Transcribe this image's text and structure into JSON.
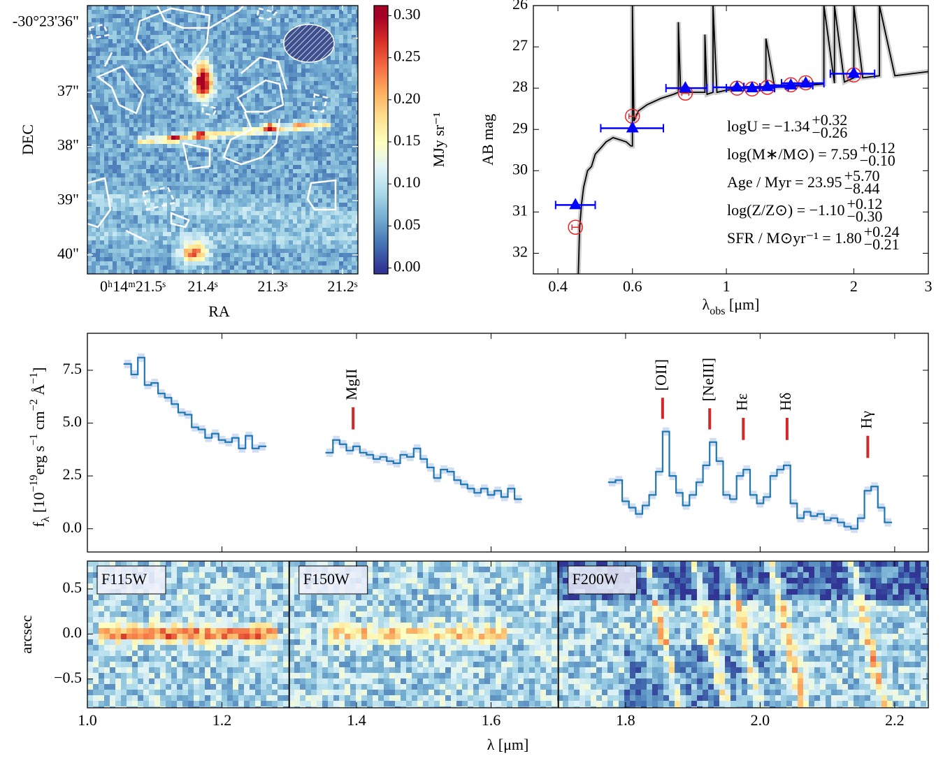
{
  "chart_data": [
    {
      "type": "image",
      "xlabel": "RA",
      "ylabel": "DEC",
      "xlim": [
        21.565,
        21.178
      ],
      "xticks": [
        {
          "value": 21.5,
          "label": "0ʰ14ᵐ21.5ˢ"
        },
        {
          "value": 21.4,
          "label": "21.4ˢ"
        },
        {
          "value": 21.3,
          "label": "21.3ˢ"
        },
        {
          "value": 21.2,
          "label": "21.2ˢ"
        }
      ],
      "ylim": [
        40.35,
        35.4
      ],
      "yticks": [
        {
          "value": 36,
          "label": "-30°23'36\""
        },
        {
          "value": 37,
          "label": "37\""
        },
        {
          "value": 38,
          "label": "38\""
        },
        {
          "value": 39,
          "label": "39\""
        },
        {
          "value": 40,
          "label": "40\""
        }
      ],
      "colorbar": {
        "label": "MJy sr⁻¹",
        "lim": [
          -0.007,
          0.312
        ],
        "ticks": [
          {
            "value": 0,
            "label": "0.00"
          },
          0.05,
          {
            "value": 0.1,
            "label": "0.10"
          },
          0.15,
          {
            "value": 0.2,
            "label": "0.20"
          },
          0.25,
          {
            "value": 0.3,
            "label": "0.30"
          }
        ]
      }
    },
    {
      "type": "sed",
      "xscale": "log",
      "xlabel": [
        {
          "text": "λ"
        },
        {
          "text": "obs",
          "pos": "sub"
        },
        {
          "text": " [μm]"
        }
      ],
      "ylabel": "AB mag",
      "xlim": [
        0.35,
        3
      ],
      "xticks": [
        0.4,
        0.6,
        1,
        2,
        3
      ],
      "ylim": [
        32.5,
        26
      ],
      "yticks": [
        26,
        27,
        28,
        29,
        30,
        31,
        32
      ],
      "model": {
        "color": "#000000",
        "x": [
          0.447,
          0.45,
          0.455,
          0.46,
          0.47,
          0.48,
          0.49,
          0.5,
          0.51,
          0.52,
          0.54,
          0.56,
          0.58,
          0.595,
          0.6,
          0.6,
          0.605,
          0.62,
          0.65,
          0.7,
          0.75,
          0.77,
          0.77,
          0.78,
          0.85,
          0.89,
          0.89,
          0.9,
          0.93,
          0.93,
          0.95,
          1.0,
          1.1,
          1.24,
          1.24,
          1.3,
          1.5,
          1.7,
          1.7,
          1.8,
          1.8,
          1.9,
          2.0,
          2.0,
          2.1,
          2.3,
          2.3,
          2.5,
          3.0
        ],
        "values": [
          32.5,
          31.4,
          30.8,
          30.4,
          30.0,
          29.9,
          29.6,
          29.5,
          29.4,
          29.3,
          29.2,
          29.25,
          29.3,
          29.4,
          29.4,
          26.0,
          28.8,
          28.55,
          28.4,
          28.25,
          28.15,
          28.1,
          26.4,
          28.1,
          28.1,
          28.1,
          26.7,
          28.15,
          28.1,
          26.0,
          28.1,
          28.05,
          28.0,
          28.0,
          26.8,
          27.98,
          27.95,
          27.9,
          26.0,
          27.88,
          26.0,
          27.85,
          27.75,
          26.0,
          27.75,
          27.7,
          26.0,
          27.7,
          27.6
        ]
      },
      "observed": {
        "color": "#0000ff",
        "x": [
          0.44,
          0.6,
          0.8,
          1.06,
          1.15,
          1.25,
          1.42,
          1.54,
          2.0
        ],
        "values": [
          30.83,
          28.97,
          28.0,
          27.98,
          28.0,
          27.97,
          27.93,
          27.88,
          27.65
        ],
        "xlo": [
          0.395,
          0.505,
          0.72,
          0.93,
          1.0,
          1.1,
          1.25,
          1.35,
          1.76
        ],
        "xhi": [
          0.49,
          0.71,
          0.9,
          1.2,
          1.3,
          1.4,
          1.6,
          1.7,
          2.24
        ]
      },
      "model_photometry": {
        "color": "#e8262a",
        "x": [
          0.44,
          0.6,
          0.8,
          1.06,
          1.15,
          1.25,
          1.42,
          1.54,
          2.0
        ],
        "values": [
          31.37,
          28.68,
          28.12,
          28.0,
          28.02,
          27.98,
          27.92,
          27.87,
          27.68
        ]
      },
      "annotations": [
        {
          "text": "logU = −1.34",
          "sup": "+0.32",
          "sub": "−0.26"
        },
        {
          "text": "log(M∗/M⊙) = 7.59",
          "sup": "+0.12",
          "sub": "−0.10"
        },
        {
          "text": "Age / Myr = 23.95",
          "sup": "+5.70",
          "sub": "−8.44"
        },
        {
          "text": "log(Z/Z⊙) = −1.10",
          "sup": "+0.12",
          "sub": "−0.30"
        },
        {
          "text": "SFR / M⊙yr⁻¹ = 1.80",
          "sup": "+0.24",
          "sub": "−0.21"
        }
      ]
    },
    {
      "type": "step",
      "color": "#1f77b4",
      "ylabel": [
        {
          "text": "f"
        },
        {
          "text": "λ",
          "pos": "sub"
        },
        {
          "text": " [10"
        },
        {
          "text": "−19",
          "pos": "sup"
        },
        {
          "text": "erg s"
        },
        {
          "text": "−1",
          "pos": "sup"
        },
        {
          "text": " cm"
        },
        {
          "text": "−2",
          "pos": "sup"
        },
        {
          "text": " Å"
        },
        {
          "text": "−1",
          "pos": "sup"
        },
        {
          "text": "]"
        }
      ],
      "xlim": [
        1.0,
        2.25
      ],
      "ylim": [
        -1.1,
        9.25
      ],
      "yticks": [
        {
          "value": 0,
          "label": "0.0"
        },
        2.5,
        {
          "value": 5,
          "label": "5.0"
        },
        7.5
      ],
      "x": [
        1.06,
        1.07,
        1.08,
        1.09,
        1.1,
        1.11,
        1.12,
        1.13,
        1.14,
        1.15,
        1.16,
        1.17,
        1.18,
        1.19,
        1.2,
        1.21,
        1.22,
        1.23,
        1.24,
        1.25,
        1.26,
        1.31,
        1.36,
        1.37,
        1.38,
        1.39,
        1.4,
        1.41,
        1.42,
        1.43,
        1.44,
        1.45,
        1.46,
        1.47,
        1.48,
        1.49,
        1.5,
        1.51,
        1.52,
        1.53,
        1.54,
        1.55,
        1.56,
        1.57,
        1.58,
        1.59,
        1.6,
        1.61,
        1.62,
        1.63,
        1.64,
        1.71,
        1.78,
        1.79,
        1.8,
        1.81,
        1.82,
        1.83,
        1.84,
        1.85,
        1.86,
        1.87,
        1.88,
        1.89,
        1.9,
        1.91,
        1.92,
        1.93,
        1.94,
        1.95,
        1.96,
        1.97,
        1.98,
        1.99,
        2.0,
        2.01,
        2.02,
        2.03,
        2.04,
        2.05,
        2.06,
        2.07,
        2.08,
        2.09,
        2.1,
        2.11,
        2.12,
        2.13,
        2.14,
        2.15,
        2.16,
        2.17,
        2.18,
        2.19
      ],
      "values": [
        7.8,
        7.3,
        8.1,
        6.8,
        6.9,
        6.4,
        6.2,
        5.9,
        5.5,
        5.4,
        4.8,
        4.7,
        4.3,
        4.5,
        4.2,
        4.1,
        4.3,
        3.8,
        4.4,
        3.8,
        3.9,
        null,
        3.6,
        4.2,
        4.0,
        3.7,
        3.9,
        3.6,
        3.5,
        3.3,
        3.4,
        3.2,
        3.1,
        3.5,
        3.4,
        3.8,
        3.3,
        2.9,
        2.4,
        2.8,
        2.7,
        2.3,
        2.1,
        1.9,
        1.7,
        1.9,
        1.6,
        1.8,
        1.5,
        1.9,
        1.4,
        null,
        2.2,
        2.3,
        1.3,
        1.0,
        0.7,
        1.1,
        1.6,
        2.7,
        4.6,
        2.5,
        1.7,
        1.1,
        1.6,
        2.2,
        3.0,
        4.1,
        3.2,
        1.6,
        1.4,
        2.5,
        2.8,
        1.6,
        1.2,
        1.5,
        2.5,
        2.8,
        3.0,
        1.2,
        0.5,
        0.8,
        0.6,
        0.7,
        0.4,
        0.5,
        0.3,
        0.1,
        0.0,
        0.5,
        1.8,
        2.0,
        1.0,
        0.3
      ],
      "line_color": "#d62728",
      "annotations": [
        {
          "text": "MgII",
          "x": 1.395,
          "y": [
            4.7,
            5.75
          ]
        },
        {
          "text": "[OII]",
          "x": 1.855,
          "y": [
            5.2,
            6.2
          ]
        },
        {
          "text": "[NeIII]",
          "x": 1.925,
          "y": [
            4.7,
            5.7
          ]
        },
        {
          "text": "Hε",
          "x": 1.975,
          "y": [
            4.2,
            5.25
          ]
        },
        {
          "text": "Hδ",
          "x": 2.04,
          "y": [
            4.2,
            5.25
          ]
        },
        {
          "text": "Hγ",
          "x": 2.16,
          "y": [
            3.35,
            4.4
          ]
        }
      ]
    },
    {
      "type": "image2d",
      "xlabel": "λ [μm]",
      "ylabel": "arcsec",
      "xlim": [
        1.0,
        2.25
      ],
      "xticks": [
        {
          "value": 1.0,
          "label": "1.0"
        },
        1.2,
        1.4,
        1.6,
        1.8,
        {
          "value": 2.0,
          "label": "2.0"
        },
        2.2
      ],
      "ylim": [
        -0.82,
        0.81
      ],
      "yticks": [
        {
          "value": -0.5,
          "label": "−0.5"
        },
        {
          "value": 0,
          "label": "0.0"
        },
        {
          "value": 0.5,
          "label": "0.5"
        }
      ],
      "dividers": [
        1.3,
        1.7
      ],
      "filters": [
        "F115W",
        "F150W",
        "F200W"
      ]
    }
  ]
}
